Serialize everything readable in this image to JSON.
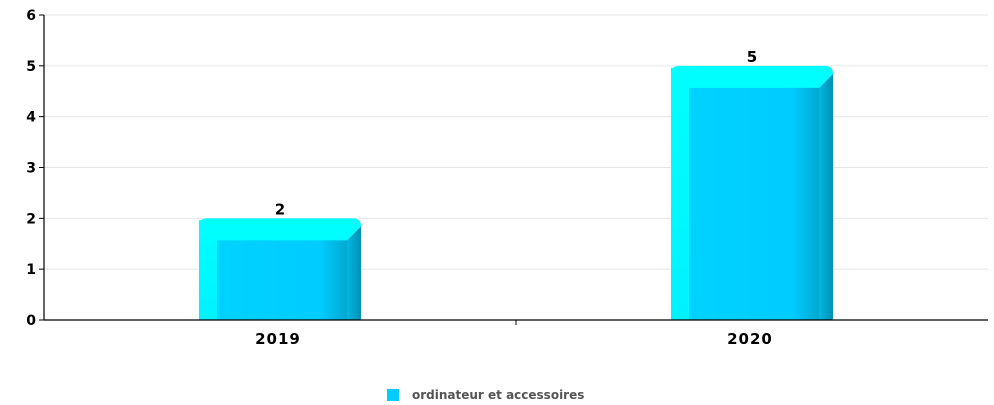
{
  "chart_data": {
    "type": "bar",
    "categories": [
      "2019",
      "2020"
    ],
    "series": [
      {
        "name": "ordinateur et accessoires",
        "values": [
          2,
          5
        ],
        "color": "#00CCFF"
      }
    ],
    "ylim": [
      0,
      6
    ],
    "yticks": [
      0,
      1,
      2,
      3,
      4,
      5,
      6
    ],
    "grid": true,
    "legend_position": "bottom-center",
    "data_labels": [
      "2",
      "5"
    ]
  }
}
